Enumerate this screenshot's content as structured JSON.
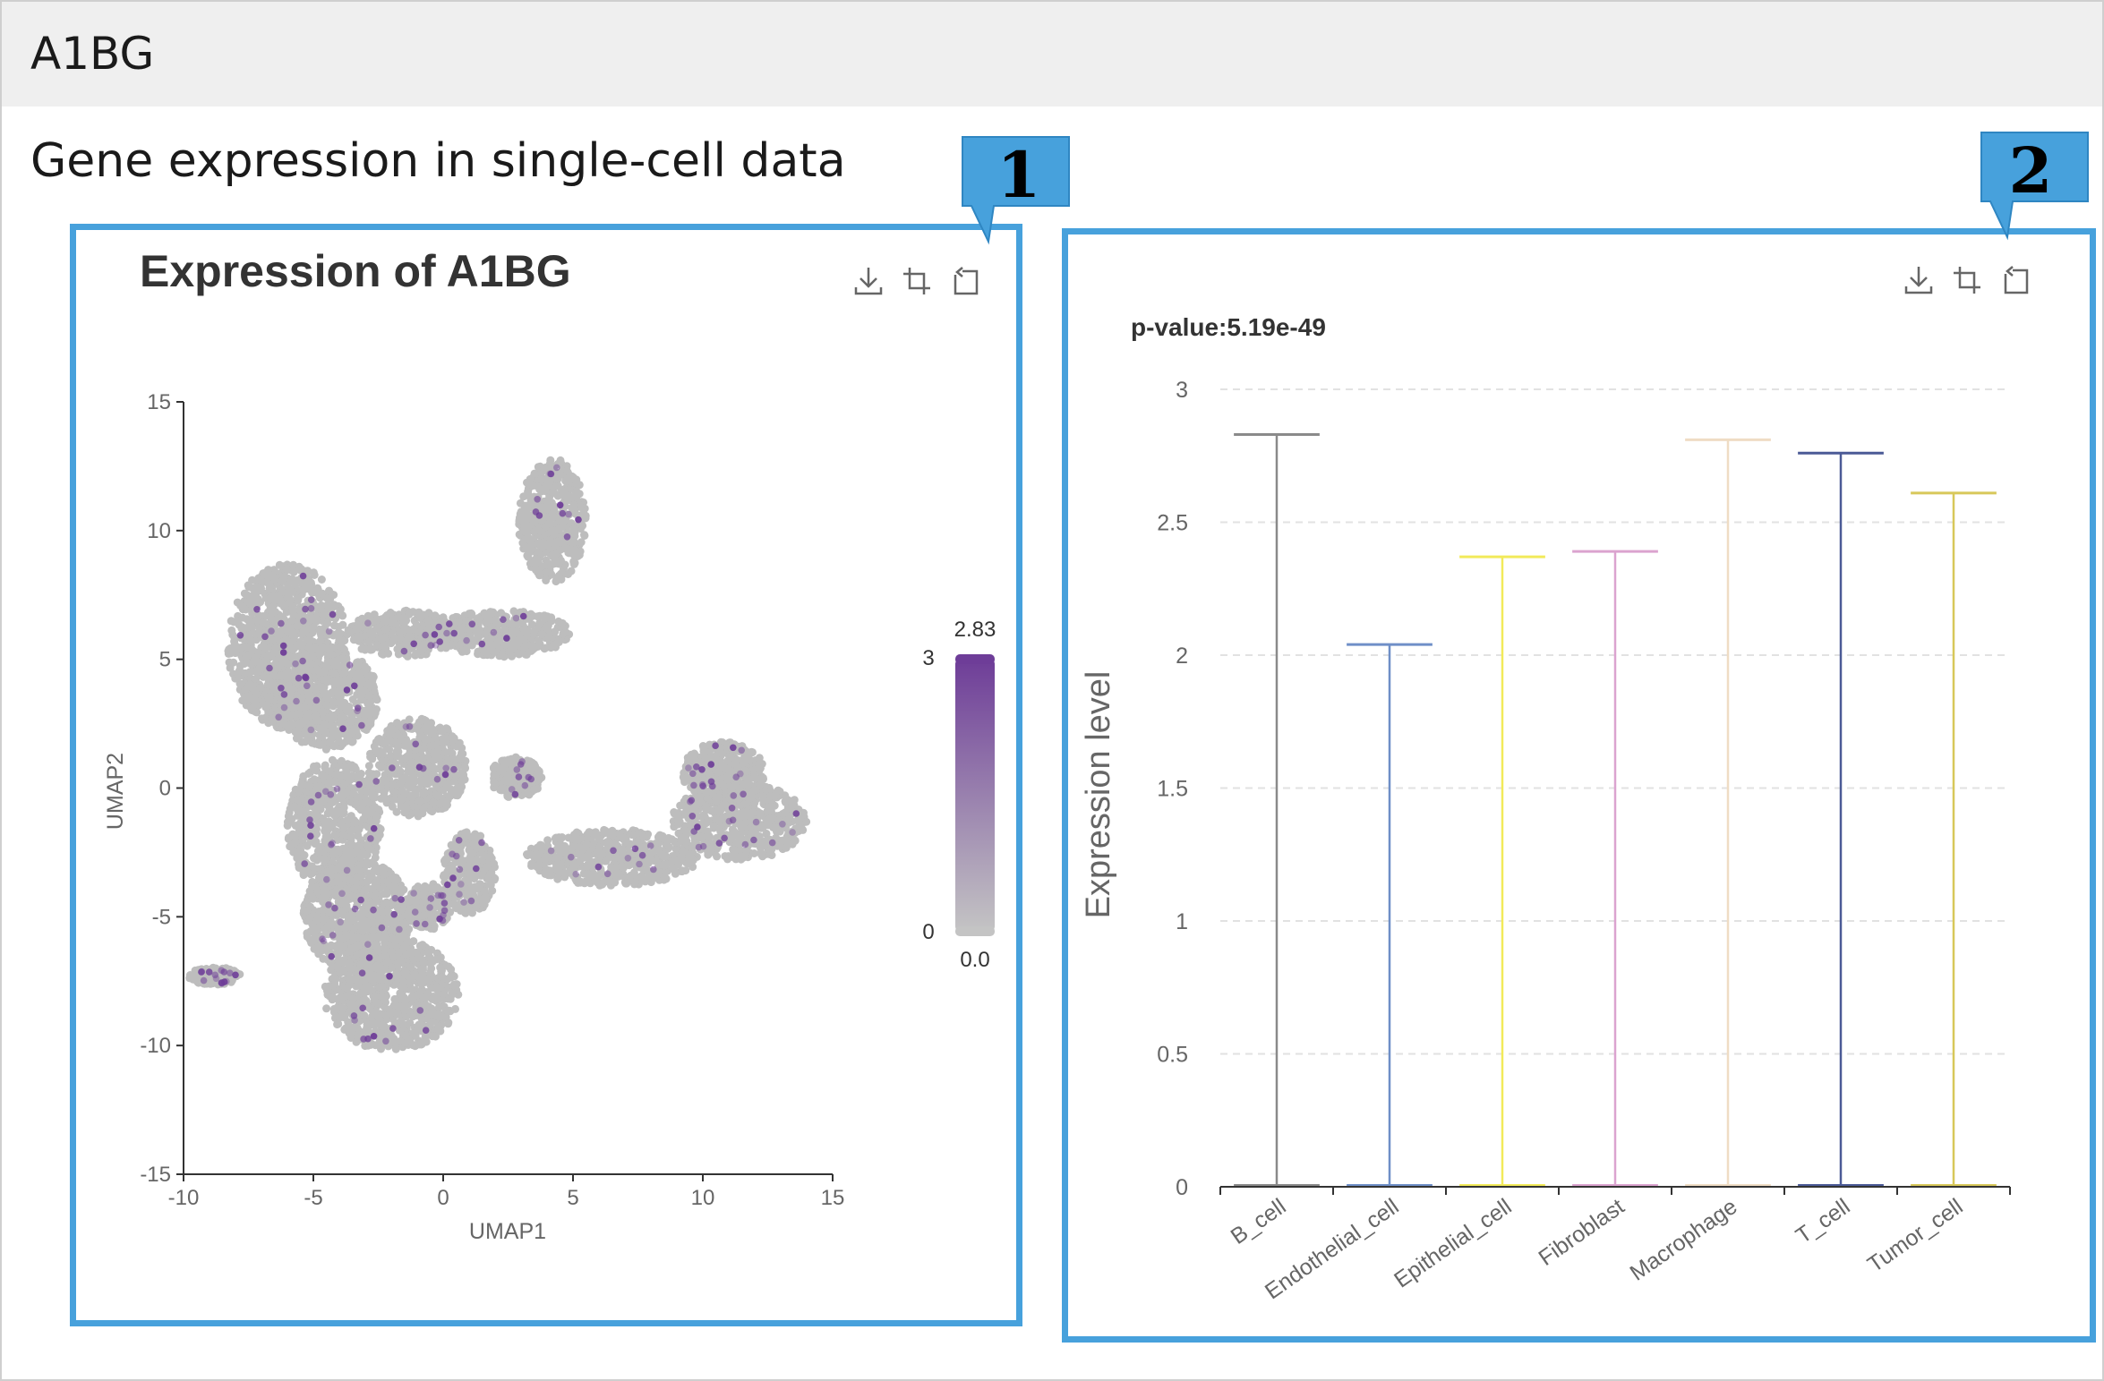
{
  "header": {
    "gene": "A1BG"
  },
  "section": {
    "title": "Gene expression in single-cell data"
  },
  "callouts": [
    "1",
    "2"
  ],
  "toolbar": {
    "icons": [
      "download-icon",
      "crop-icon",
      "restore-icon"
    ]
  },
  "colors": {
    "accent": "#47a1dc",
    "cell_gray": "#bdbdbd",
    "expr_high": "#6e3d98"
  },
  "umap_panel": {
    "title": "Expression of A1BG",
    "xlabel": "UMAP1",
    "ylabel": "UMAP2",
    "xticks": [
      "-10",
      "-5",
      "0",
      "5",
      "10",
      "15"
    ],
    "yticks": [
      "15",
      "10",
      "5",
      "0",
      "-5",
      "-10",
      "-15"
    ],
    "colorbar": {
      "max_label": "2.83",
      "min_label": "0.0",
      "top_tick": "3",
      "bottom_tick": "0"
    }
  },
  "chart_data": {
    "type": "boxplot",
    "title": "p-value:5.19e-49",
    "xlabel": "",
    "ylabel": "Expression level",
    "ylim": [
      0,
      3
    ],
    "yticks": [
      "0",
      "0.5",
      "1",
      "1.5",
      "2",
      "2.5",
      "3"
    ],
    "categories": [
      "B_cell",
      "Endothelial_cell",
      "Epithelial_cell",
      "Fibroblast",
      "Macrophage",
      "T_cell",
      "Tumor_cell"
    ],
    "max": [
      2.83,
      2.04,
      2.37,
      2.39,
      2.81,
      2.76,
      2.61
    ],
    "median": [
      0,
      0,
      0,
      0,
      0,
      0,
      0
    ],
    "colors": [
      "#8a8a8a",
      "#6f8fc7",
      "#f2ea5a",
      "#dba3cf",
      "#efdcc4",
      "#4b5a96",
      "#d8c85a"
    ],
    "grid": true
  }
}
